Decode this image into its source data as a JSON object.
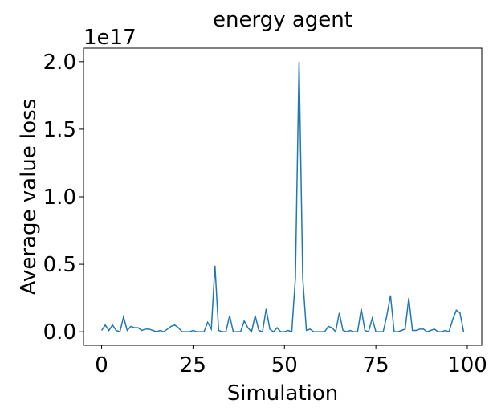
{
  "chart_data": {
    "type": "line",
    "title": "energy agent",
    "x_label": "Simulation",
    "y_label": "Average value loss",
    "y_offset_text": "1e17",
    "x": [
      0,
      1,
      2,
      3,
      4,
      5,
      6,
      7,
      8,
      9,
      10,
      11,
      12,
      13,
      14,
      15,
      16,
      17,
      18,
      19,
      20,
      21,
      22,
      23,
      24,
      25,
      26,
      27,
      28,
      29,
      30,
      31,
      32,
      33,
      34,
      35,
      36,
      37,
      38,
      39,
      40,
      41,
      42,
      43,
      44,
      45,
      46,
      47,
      48,
      49,
      50,
      51,
      52,
      53,
      54,
      55,
      56,
      57,
      58,
      59,
      60,
      61,
      62,
      63,
      64,
      65,
      66,
      67,
      68,
      69,
      70,
      71,
      72,
      73,
      74,
      75,
      76,
      77,
      78,
      79,
      80,
      81,
      82,
      83,
      84,
      85,
      86,
      87,
      88,
      89,
      90,
      91,
      92,
      93,
      94,
      95,
      96,
      97,
      98,
      99
    ],
    "series": [
      {
        "color": "#1f77b4",
        "values": [
          0.01,
          0.05,
          0.01,
          0.05,
          0.01,
          0.0,
          0.11,
          0.01,
          0.04,
          0.03,
          0.03,
          0.01,
          0.02,
          0.02,
          0.01,
          0.0,
          0.01,
          0.0,
          0.02,
          0.04,
          0.05,
          0.03,
          0.0,
          0.0,
          0.0,
          0.01,
          0.0,
          0.0,
          0.0,
          0.07,
          0.02,
          0.49,
          0.01,
          0.0,
          0.0,
          0.12,
          0.0,
          0.0,
          0.0,
          0.08,
          0.03,
          0.0,
          0.12,
          0.01,
          0.0,
          0.17,
          0.02,
          0.0,
          0.03,
          0.0,
          0.0,
          0.01,
          0.0,
          0.4,
          2.0,
          0.4,
          0.01,
          0.02,
          0.0,
          0.0,
          0.0,
          0.0,
          0.04,
          0.03,
          0.0,
          0.14,
          0.01,
          0.0,
          0.01,
          0.0,
          0.0,
          0.17,
          0.01,
          0.0,
          0.1,
          0.0,
          0.0,
          0.0,
          0.12,
          0.27,
          0.0,
          0.0,
          0.01,
          0.02,
          0.25,
          0.01,
          0.01,
          0.02,
          0.02,
          0.0,
          0.01,
          0.02,
          0.0,
          0.0,
          0.01,
          0.0,
          0.09,
          0.16,
          0.14,
          0.0
        ]
      }
    ],
    "xlim": [
      -4.95,
      103.95
    ],
    "ylim": [
      -0.1,
      2.1
    ],
    "xticks": [
      0,
      25,
      50,
      75,
      100
    ],
    "yticks": [
      {
        "value": 0,
        "label": "0.0"
      },
      {
        "value": 0.5,
        "label": "0.5"
      },
      {
        "value": 1,
        "label": "1.0"
      },
      {
        "value": 1.5,
        "label": "1.5"
      },
      {
        "value": 2,
        "label": "2.0"
      }
    ]
  }
}
